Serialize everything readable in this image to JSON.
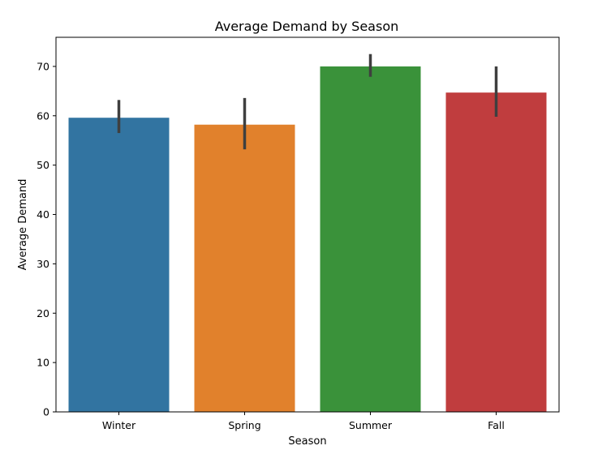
{
  "chart_data": {
    "type": "bar",
    "title": "Average Demand by Season",
    "xlabel": "Season",
    "ylabel": "Average Demand",
    "categories": [
      "Winter",
      "Spring",
      "Summer",
      "Fall"
    ],
    "values": [
      59.6,
      58.2,
      70.0,
      64.7
    ],
    "error_low": [
      56.5,
      53.2,
      67.9,
      59.8
    ],
    "error_high": [
      63.2,
      63.6,
      72.5,
      70.0
    ],
    "colors": [
      "#3274a1",
      "#e1812c",
      "#3a923a",
      "#c03d3e"
    ],
    "error_color": "#3f3f3f",
    "ylim": [
      0,
      75.9
    ],
    "yticks": [
      0,
      10,
      20,
      30,
      40,
      50,
      60,
      70
    ],
    "grid": false,
    "legend": "none"
  }
}
